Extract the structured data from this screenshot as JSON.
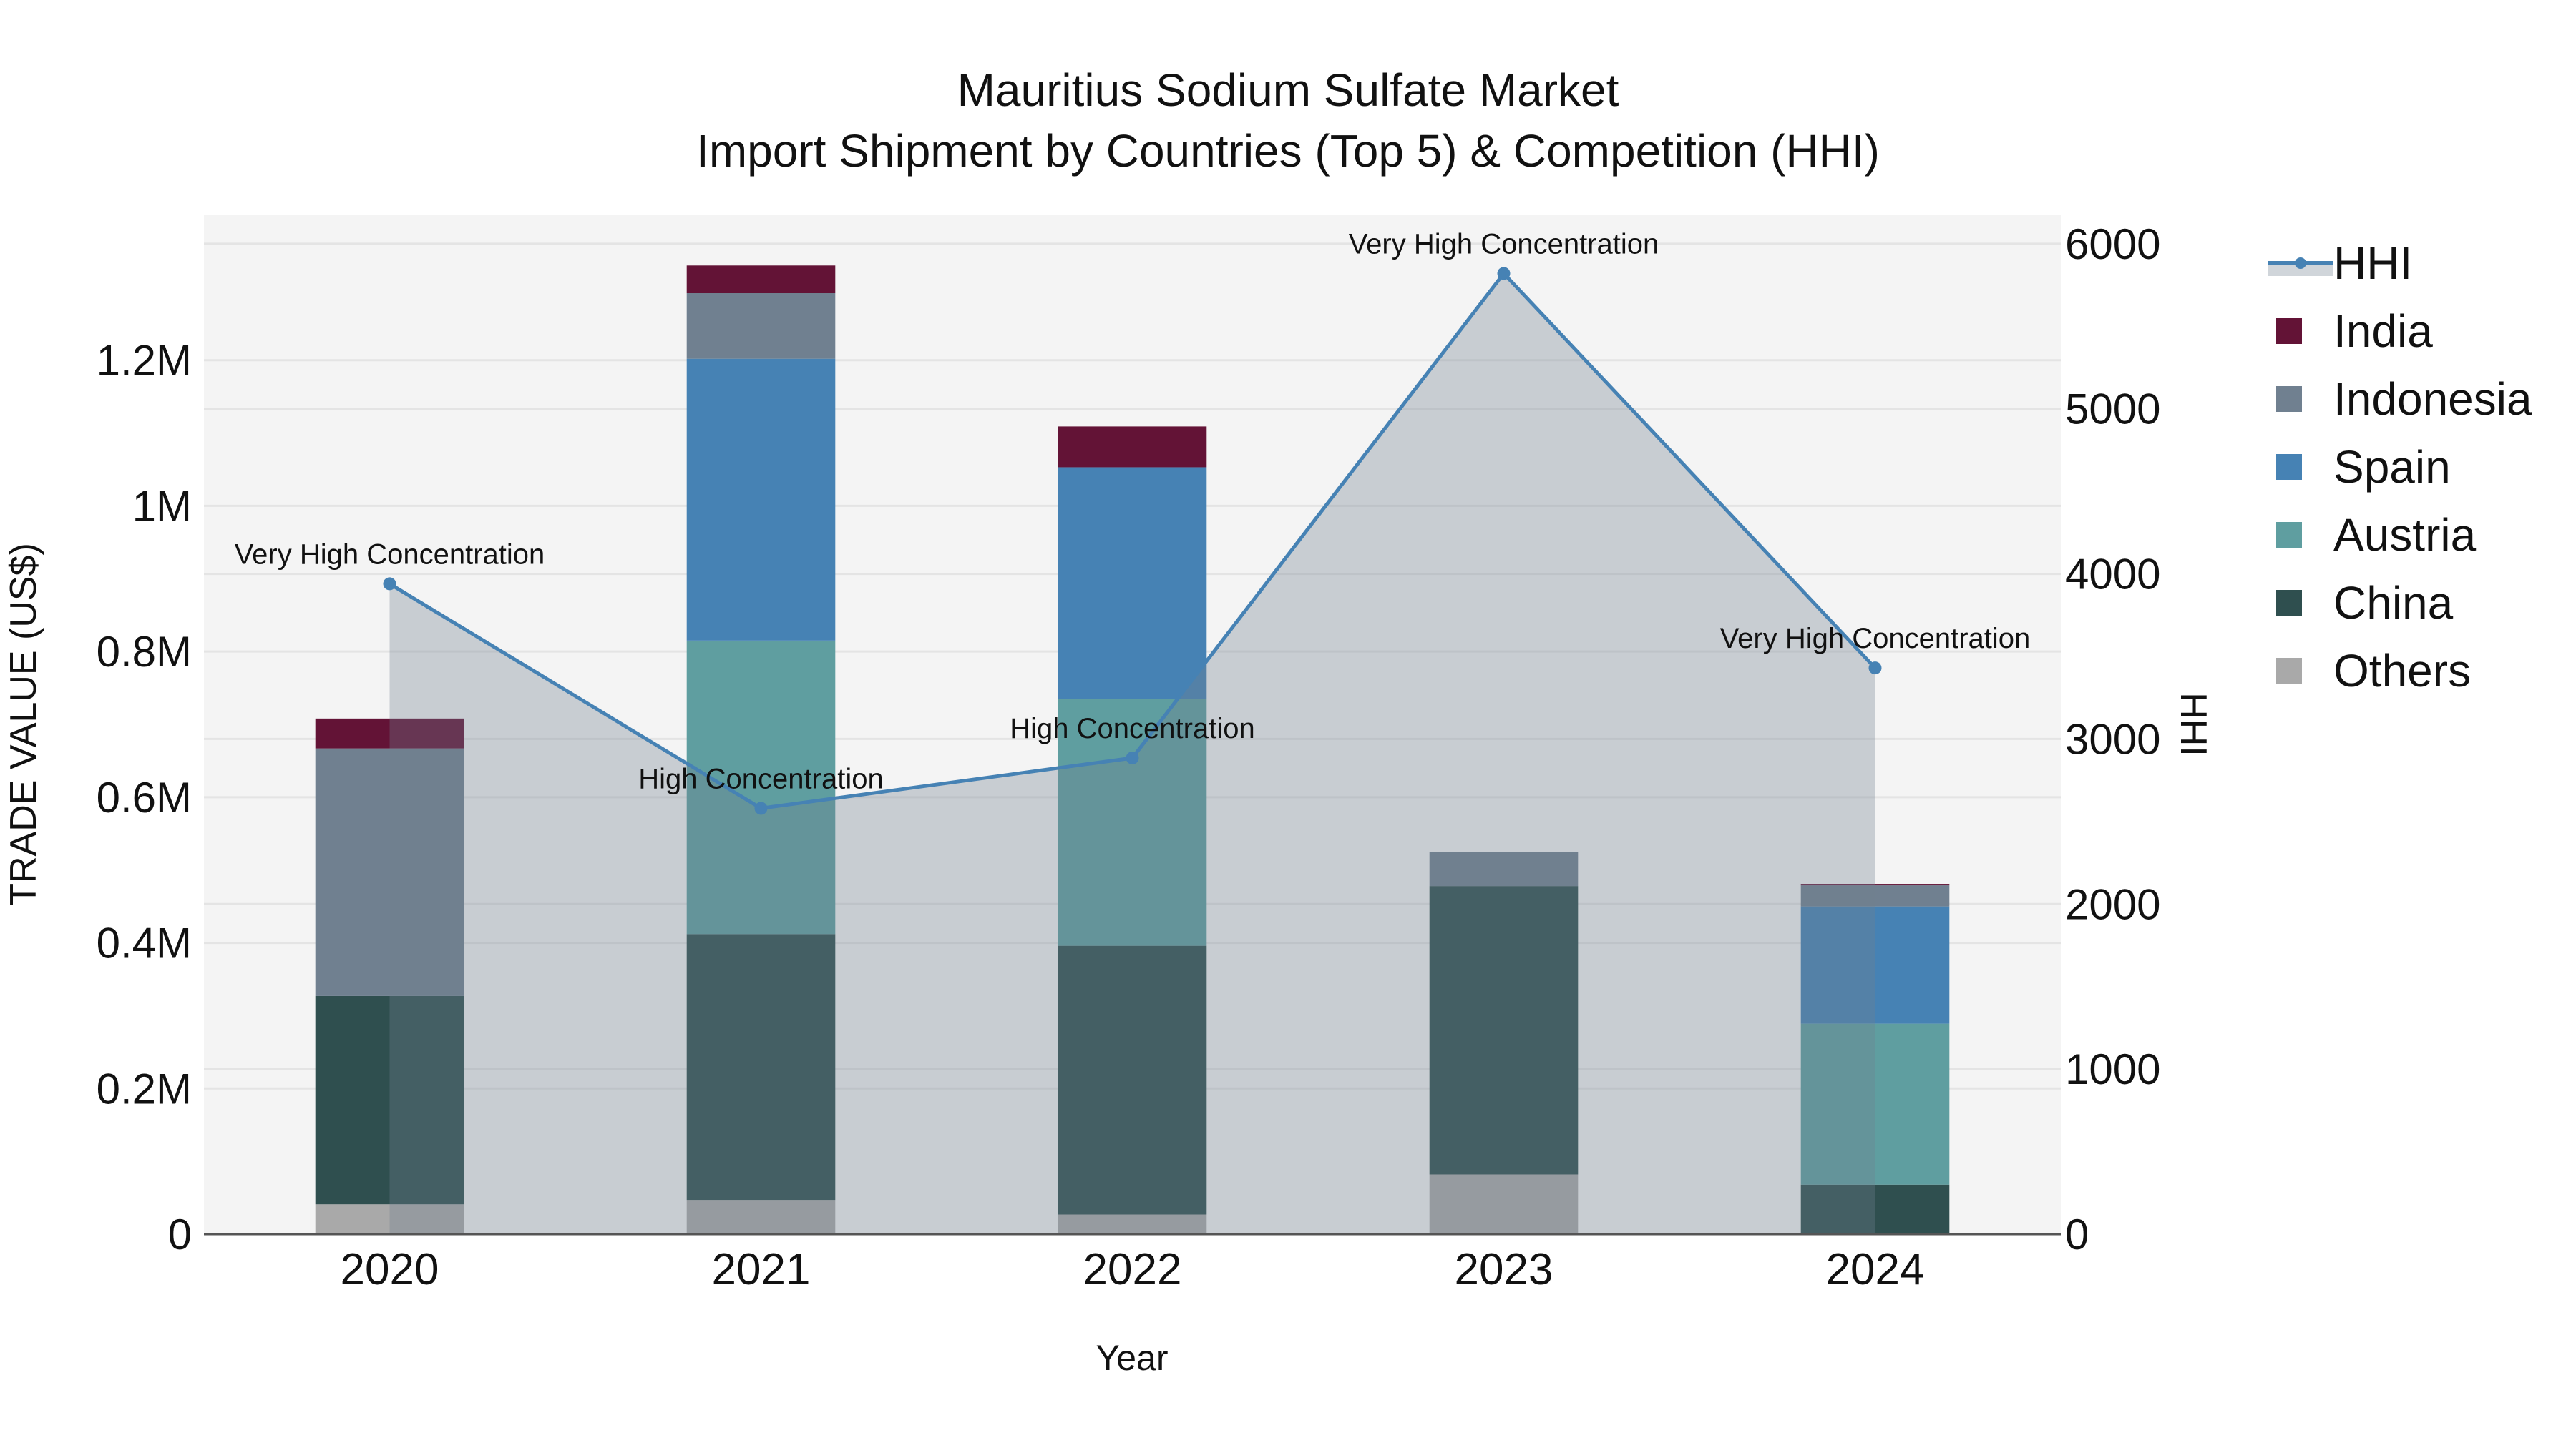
{
  "title": {
    "line1": "Mauritius Sodium Sulfate Market",
    "line2": "Import Shipment by Countries (Top 5) & Competition (HHI)"
  },
  "axes": {
    "x_title": "Year",
    "y_left_title": "TRADE VALUE (US$)",
    "y_right_title": "HHI",
    "y_left_ticks": [
      "0",
      "0.2M",
      "0.4M",
      "0.6M",
      "0.8M",
      "1M",
      "1.2M"
    ],
    "y_right_ticks": [
      "0",
      "1000",
      "2000",
      "3000",
      "4000",
      "5000",
      "6000"
    ]
  },
  "legend": {
    "items": [
      {
        "label": "HHI",
        "type": "line",
        "color": "#4682B4"
      },
      {
        "label": "India",
        "type": "box",
        "color": "#631336"
      },
      {
        "label": "Indonesia",
        "type": "box",
        "color": "#708090"
      },
      {
        "label": "Spain",
        "type": "box",
        "color": "#4682B4"
      },
      {
        "label": "Austria",
        "type": "box",
        "color": "#5F9EA0"
      },
      {
        "label": "China",
        "type": "box",
        "color": "#2F4F4F"
      },
      {
        "label": "Others",
        "type": "box",
        "color": "#A9A9A9"
      }
    ]
  },
  "colors": {
    "plot_bg": "#F4F4F4",
    "grid": "#E4E4E4",
    "hhi_line": "#4682B4",
    "hhi_fill": "rgba(112,128,144,0.33)",
    "axis_line": "#555555"
  },
  "chart_data": {
    "type": "bar",
    "title": "Mauritius Sodium Sulfate Market — Import Shipment by Countries (Top 5) & Competition (HHI)",
    "xlabel": "Year",
    "ylabel": "TRADE VALUE (US$)",
    "y2label": "HHI",
    "stacked": true,
    "categories": [
      "2020",
      "2021",
      "2022",
      "2023",
      "2024"
    ],
    "ylim": [
      0,
      1400000
    ],
    "y2lim": [
      0,
      6177
    ],
    "grid": true,
    "legend_position": "right",
    "series": [
      {
        "name": "Others",
        "type": "bar",
        "color": "#A9A9A9",
        "values": [
          41000,
          47000,
          27000,
          82000,
          0
        ]
      },
      {
        "name": "China",
        "type": "bar",
        "color": "#2F4F4F",
        "values": [
          286000,
          365000,
          369000,
          396000,
          68000
        ]
      },
      {
        "name": "Austria",
        "type": "bar",
        "color": "#5F9EA0",
        "values": [
          0,
          403000,
          339000,
          0,
          221000
        ]
      },
      {
        "name": "Spain",
        "type": "bar",
        "color": "#4682B4",
        "values": [
          0,
          387000,
          318000,
          0,
          161000
        ]
      },
      {
        "name": "Indonesia",
        "type": "bar",
        "color": "#708090",
        "values": [
          340000,
          90000,
          0,
          47000,
          29000
        ]
      },
      {
        "name": "India",
        "type": "bar",
        "color": "#631336",
        "values": [
          41000,
          38000,
          56000,
          0,
          2000
        ]
      },
      {
        "name": "HHI",
        "type": "line+area",
        "axis": "right",
        "color": "#4682B4",
        "values": [
          3940,
          2580,
          2885,
          5820,
          3430
        ]
      }
    ],
    "annotations": [
      {
        "x": "2020",
        "text": "Very High Concentration"
      },
      {
        "x": "2021",
        "text": "High Concentration"
      },
      {
        "x": "2022",
        "text": "High Concentration"
      },
      {
        "x": "2023",
        "text": "Very High Concentration"
      },
      {
        "x": "2024",
        "text": "Very High Concentration"
      }
    ]
  }
}
